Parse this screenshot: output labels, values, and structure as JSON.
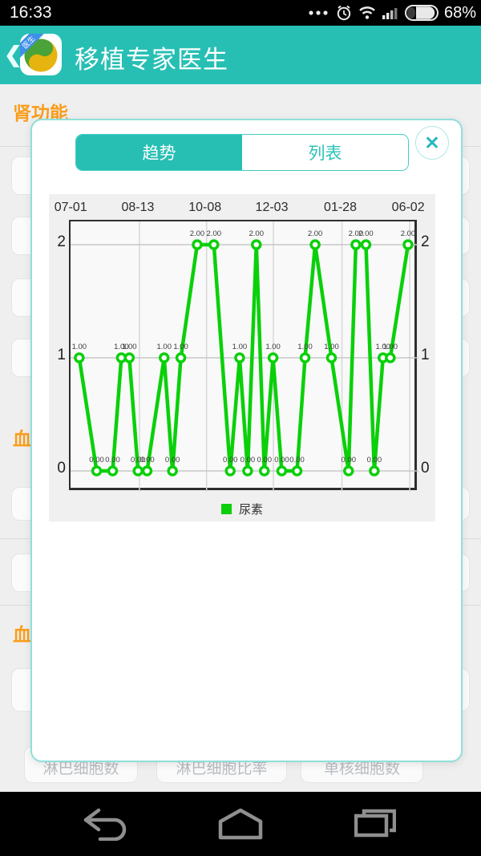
{
  "status_bar": {
    "time": "16:33",
    "battery_percent": "68%"
  },
  "header": {
    "back_glyph": "❮",
    "icon_badge": "医生",
    "title": "移植专家医生"
  },
  "page": {
    "section_kidney": "肾功能",
    "section_blood_1": "血",
    "section_blood_2": "血",
    "bottom_buttons": [
      "淋巴细胞数",
      "淋巴细胞比率",
      "单核细胞数"
    ]
  },
  "modal": {
    "tabs": [
      {
        "id": "trend",
        "label": "趋势",
        "active": true
      },
      {
        "id": "list",
        "label": "列表",
        "active": false
      }
    ],
    "close_glyph": "✕"
  },
  "chart_data": {
    "type": "line",
    "title": "",
    "legend": "尿素",
    "legend_position": "bottom",
    "grid": true,
    "line_color": "#0ad00a",
    "x_tick_labels": [
      "07-01",
      "08-13",
      "10-08",
      "12-03",
      "01-28",
      "06-02"
    ],
    "x_tick_pct": [
      0.5,
      19.8,
      39.1,
      58.3,
      78.0,
      97.5
    ],
    "y_ticks": [
      "0",
      "1",
      "2"
    ],
    "ylim": [
      -0.2,
      2.4
    ],
    "x_pct": [
      2.5,
      7.5,
      12.1,
      14.6,
      16.9,
      19.4,
      22.0,
      26.9,
      29.3,
      31.7,
      36.4,
      41.2,
      45.9,
      48.6,
      50.9,
      53.4,
      55.7,
      58.2,
      60.7,
      65.1,
      67.4,
      70.3,
      75.0,
      79.9,
      82.0,
      84.9,
      87.3,
      89.8,
      91.9,
      97.0
    ],
    "series": [
      {
        "name": "尿素",
        "values": [
          1,
          0,
          0,
          1,
          1,
          0,
          0,
          1,
          0,
          1,
          2,
          2,
          0,
          1,
          0,
          2,
          0,
          1,
          0,
          0,
          1,
          2,
          1,
          0,
          2,
          2,
          0,
          1,
          1,
          2
        ]
      }
    ],
    "point_label_decimals": 2
  },
  "colors": {
    "teal": "#27bfb4",
    "orange": "#f99d1c",
    "green": "#0ad00a",
    "modal_border": "#8fe0da"
  }
}
